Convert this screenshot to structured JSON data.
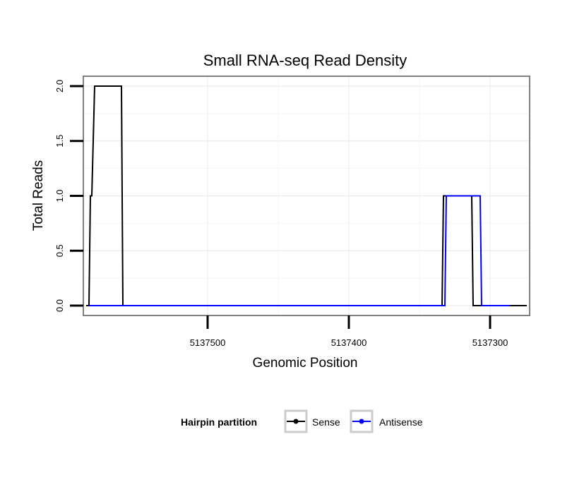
{
  "chart_data": {
    "type": "line",
    "title": "Small RNA-seq Read Density",
    "xlabel": "Genomic Position",
    "ylabel": "Total Reads",
    "x_reversed": true,
    "xlim": [
      5137272,
      5137588
    ],
    "ylim": [
      -0.09,
      2.09
    ],
    "x_ticks": [
      5137500,
      5137400,
      5137300
    ],
    "x_tick_labels": [
      "5137500",
      "5137400",
      "5137300"
    ],
    "y_ticks": [
      0,
      0.5,
      1,
      1.5,
      2
    ],
    "y_tick_labels": [
      "0.0",
      "0.5",
      "1.0",
      "1.5",
      "2.0"
    ],
    "grid": true,
    "legend": {
      "title": "Hairpin partition",
      "position": "bottom",
      "entries": [
        {
          "label": "Sense",
          "color": "#000000"
        },
        {
          "label": "Antisense",
          "color": "#0000ff"
        }
      ]
    },
    "series": [
      {
        "name": "Sense",
        "color": "#000000",
        "points": [
          [
            5137586,
            0
          ],
          [
            5137584,
            0
          ],
          [
            5137583,
            1
          ],
          [
            5137582,
            1
          ],
          [
            5137580,
            2
          ],
          [
            5137561,
            2
          ],
          [
            5137560,
            0
          ],
          [
            5137338,
            0
          ],
          [
            5137334,
            0
          ],
          [
            5137333,
            1
          ],
          [
            5137313,
            1
          ],
          [
            5137312,
            0
          ],
          [
            5137274,
            0
          ]
        ]
      },
      {
        "name": "Antisense",
        "color": "#0000ff",
        "points": [
          [
            5137584,
            0
          ],
          [
            5137560,
            0
          ],
          [
            5137332,
            0
          ],
          [
            5137331,
            1
          ],
          [
            5137307,
            1
          ],
          [
            5137306,
            0
          ],
          [
            5137286,
            0
          ]
        ]
      }
    ]
  }
}
